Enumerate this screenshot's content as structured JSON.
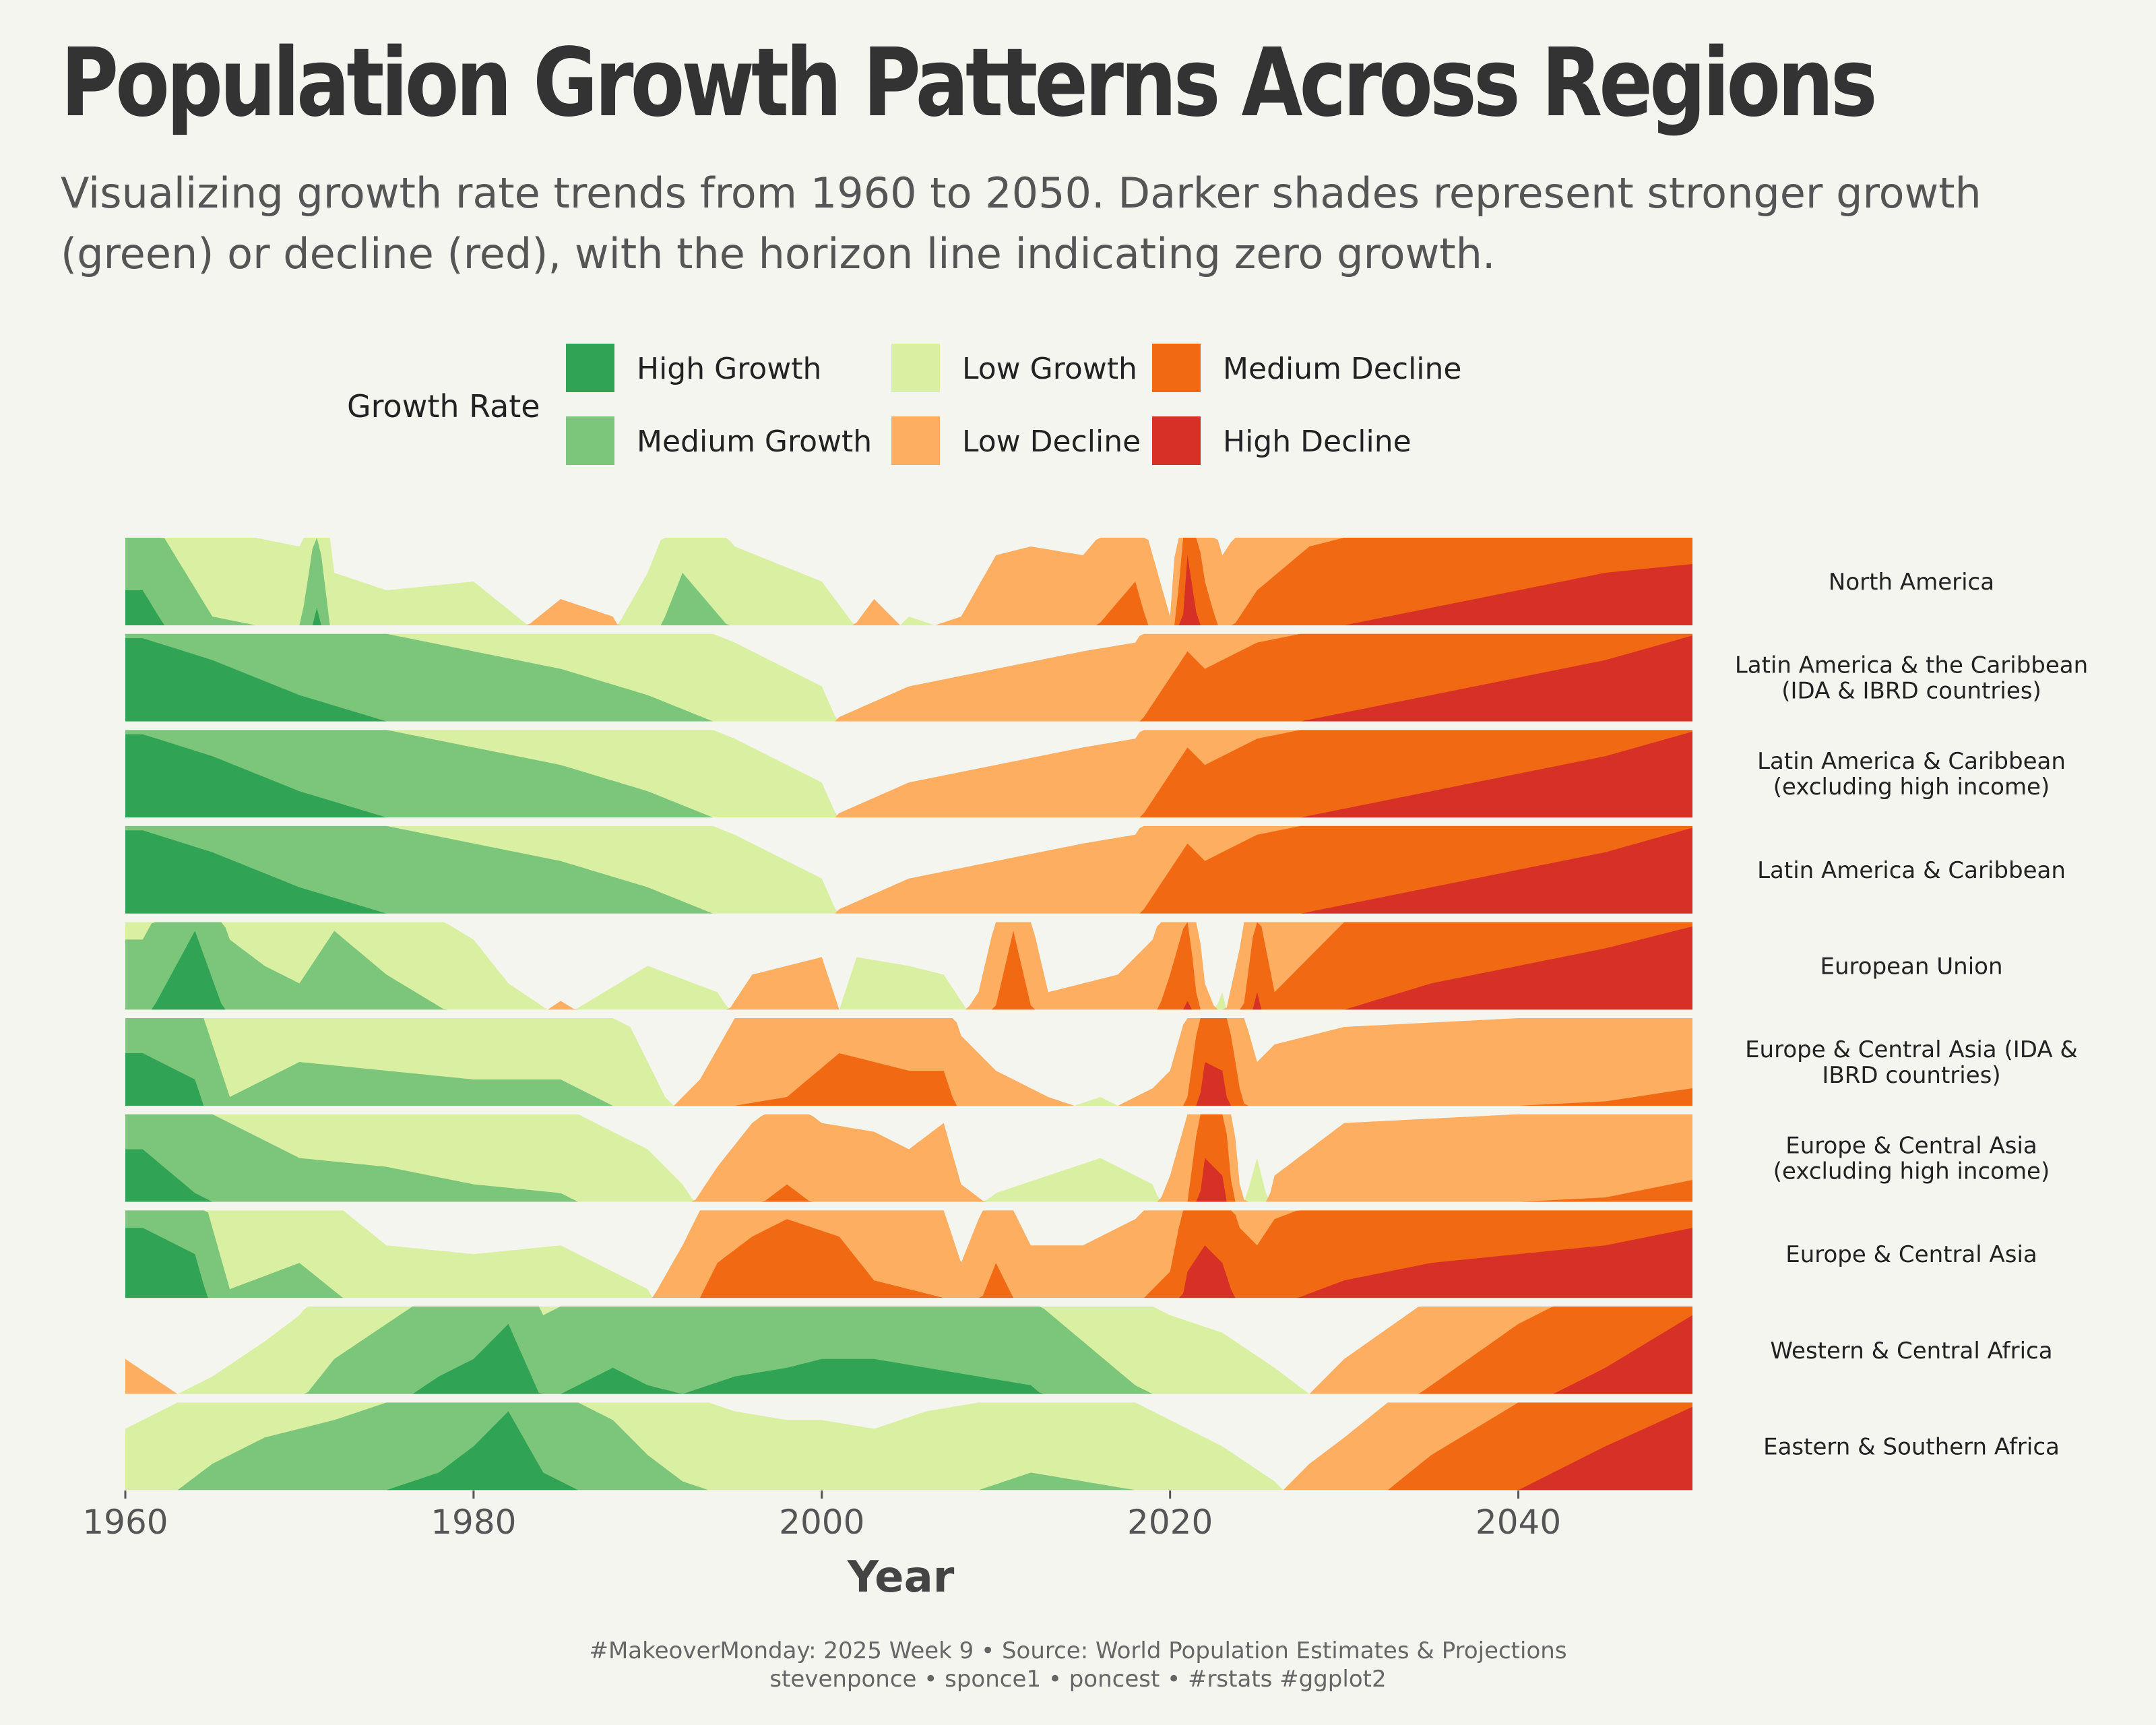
{
  "title": "Population Growth Patterns Across Regions",
  "subtitle": "Visualizing growth rate trends from 1960 to 2050. Darker shades represent stronger growth (green) or decline (red), with the horizon line indicating zero growth.",
  "legend": {
    "title": "Growth Rate",
    "items": [
      {
        "label": "High Growth",
        "color": "#31a354"
      },
      {
        "label": "Medium Growth",
        "color": "#7bc67a"
      },
      {
        "label": "Low Growth",
        "color": "#d9f0a3"
      },
      {
        "label": "Low Decline",
        "color": "#fdae61"
      },
      {
        "label": "Medium Decline",
        "color": "#f16913"
      },
      {
        "label": "High Decline",
        "color": "#d73027"
      }
    ]
  },
  "caption": {
    "line1": "#MakeoverMonday: 2025 Week 9 • Source: World Population Estimates & Projections",
    "line2": "stevenponce • sponce1 • poncest • #rstats #ggplot2"
  },
  "chart_data": {
    "type": "area",
    "subtype": "horizon",
    "xlabel": "Year",
    "xlim": [
      1960,
      2050
    ],
    "xticks": [
      1960,
      1980,
      2000,
      2020,
      2040
    ],
    "band_order": [
      "High Growth",
      "Medium Growth",
      "Low Growth",
      "Low Decline",
      "Medium Decline",
      "High Decline"
    ],
    "band_note": "values are band levels 0-3 read from the horizon layers; positive = growth (green), negative = decline (red)",
    "series": [
      {
        "name": "North America",
        "x": [
          1961,
          1965,
          1970,
          1971,
          1972,
          1975,
          1980,
          1985,
          1988,
          1990,
          1992,
          1995,
          2000,
          2003,
          2005,
          2008,
          2010,
          2012,
          2015,
          2018,
          2020,
          2021,
          2022,
          2023,
          2025,
          2028,
          2030,
          2035,
          2040,
          2045,
          2050
        ],
        "values": [
          2.4,
          1.1,
          0.9,
          2.2,
          0.6,
          0.4,
          0.5,
          -0.3,
          -0.1,
          0.6,
          1.6,
          0.9,
          0.5,
          -0.3,
          0.1,
          -0.1,
          -0.8,
          -0.9,
          -0.8,
          -1.5,
          -0.1,
          -2.8,
          -1.5,
          -0.8,
          -1.4,
          -1.9,
          -2.0,
          -2.2,
          -2.4,
          -2.6,
          -2.7
        ]
      },
      {
        "name": "Latin America & the Caribbean\n(IDA & IBRD countries)",
        "x": [
          1961,
          1965,
          1970,
          1975,
          1980,
          1985,
          1990,
          1995,
          2000,
          2001,
          2005,
          2010,
          2015,
          2018,
          2020,
          2021,
          2022,
          2025,
          2030,
          2035,
          2040,
          2045,
          2050
        ],
        "values": [
          2.95,
          2.7,
          2.3,
          2.0,
          1.8,
          1.6,
          1.3,
          0.9,
          0.4,
          -0.05,
          -0.4,
          -0.6,
          -0.8,
          -0.9,
          -1.5,
          -1.8,
          -1.6,
          -1.9,
          -2.1,
          -2.3,
          -2.5,
          -2.7,
          -2.98
        ]
      },
      {
        "name": "Latin America & Caribbean\n(excluding high income)",
        "x": [
          1961,
          1965,
          1970,
          1975,
          1980,
          1985,
          1990,
          1995,
          2000,
          2001,
          2005,
          2010,
          2015,
          2018,
          2020,
          2021,
          2022,
          2025,
          2030,
          2035,
          2040,
          2045,
          2050
        ],
        "values": [
          2.95,
          2.7,
          2.3,
          2.0,
          1.8,
          1.6,
          1.3,
          0.9,
          0.4,
          -0.05,
          -0.4,
          -0.6,
          -0.8,
          -0.9,
          -1.5,
          -1.8,
          -1.6,
          -1.9,
          -2.1,
          -2.3,
          -2.5,
          -2.7,
          -2.98
        ]
      },
      {
        "name": "Latin America & Caribbean",
        "x": [
          1961,
          1965,
          1970,
          1975,
          1980,
          1985,
          1990,
          1995,
          2000,
          2001,
          2005,
          2010,
          2015,
          2018,
          2020,
          2021,
          2022,
          2025,
          2030,
          2035,
          2040,
          2045,
          2050
        ],
        "values": [
          2.95,
          2.7,
          2.3,
          2.0,
          1.8,
          1.6,
          1.3,
          0.9,
          0.4,
          -0.05,
          -0.4,
          -0.6,
          -0.8,
          -0.9,
          -1.5,
          -1.8,
          -1.6,
          -1.9,
          -2.1,
          -2.3,
          -2.5,
          -2.7,
          -2.98
        ]
      },
      {
        "name": "European Union",
        "x": [
          1961,
          1964,
          1966,
          1968,
          1970,
          1972,
          1975,
          1980,
          1982,
          1985,
          1990,
          1994,
          1996,
          2000,
          2002,
          2005,
          2007,
          2009,
          2011,
          2013,
          2015,
          2017,
          2019,
          2020,
          2021,
          2022,
          2023,
          2024,
          2025,
          2026,
          2030,
          2035,
          2040,
          2045,
          2050
        ],
        "values": [
          1.8,
          2.9,
          1.8,
          1.5,
          1.3,
          1.9,
          1.4,
          0.8,
          0.3,
          -0.1,
          0.5,
          0.2,
          -0.4,
          -0.6,
          0.6,
          0.5,
          0.4,
          -0.2,
          -1.9,
          -0.2,
          -0.3,
          -0.4,
          -0.8,
          -1.4,
          -2.1,
          -0.3,
          0.2,
          -0.7,
          -2.2,
          -1.2,
          -2.0,
          -2.3,
          -2.5,
          -2.7,
          -2.95
        ]
      },
      {
        "name": "Europe & Central Asia (IDA &\nIBRD countries)",
        "x": [
          1961,
          1964,
          1966,
          1970,
          1975,
          1980,
          1985,
          1989,
          1991,
          1993,
          1995,
          1998,
          2001,
          2005,
          2007,
          2008,
          2010,
          2013,
          2016,
          2019,
          2020,
          2021,
          2022,
          2023,
          2024,
          2025,
          2026,
          2030,
          2035,
          2040,
          2045,
          2050
        ],
        "values": [
          2.6,
          2.3,
          1.1,
          1.5,
          1.4,
          1.3,
          1.3,
          0.9,
          0.1,
          -0.3,
          -1.0,
          -1.1,
          -1.6,
          -1.4,
          -1.4,
          -0.8,
          -0.4,
          -0.1,
          0.1,
          -0.2,
          -0.4,
          -1.1,
          -2.5,
          -2.4,
          -1.2,
          -0.5,
          -0.7,
          -0.9,
          -0.95,
          -1.0,
          -1.05,
          -1.2
        ]
      },
      {
        "name": "Europe & Central Asia\n(excluding high income)",
        "x": [
          1961,
          1964,
          1966,
          1970,
          1975,
          1980,
          1985,
          1990,
          1992,
          1994,
          1996,
          1998,
          2000,
          2003,
          2005,
          2007,
          2008,
          2010,
          2013,
          2016,
          2019,
          2020,
          2021,
          2022,
          2023,
          2024,
          2025,
          2026,
          2030,
          2035,
          2040,
          2045,
          2050
        ],
        "values": [
          2.6,
          2.1,
          1.9,
          1.5,
          1.4,
          1.2,
          1.1,
          0.6,
          0.2,
          -0.4,
          -0.9,
          -1.2,
          -0.9,
          -0.8,
          -0.6,
          -0.9,
          -0.2,
          0.1,
          0.3,
          0.5,
          0.2,
          -0.3,
          -1.0,
          -2.5,
          -2.3,
          -0.2,
          0.5,
          -0.3,
          -0.9,
          -0.95,
          -1.0,
          -1.05,
          -1.25
        ]
      },
      {
        "name": "Europe & Central Asia",
        "x": [
          1961,
          1964,
          1966,
          1970,
          1975,
          1980,
          1985,
          1990,
          1992,
          1994,
          1996,
          1998,
          2001,
          2003,
          2005,
          2007,
          2008,
          2010,
          2012,
          2015,
          2018,
          2020,
          2021,
          2022,
          2023,
          2024,
          2025,
          2026,
          2030,
          2035,
          2040,
          2045,
          2050
        ],
        "values": [
          2.8,
          2.5,
          1.1,
          1.4,
          0.6,
          0.5,
          0.6,
          0.1,
          -0.6,
          -1.4,
          -1.7,
          -1.9,
          -1.7,
          -1.2,
          -1.1,
          -1.0,
          -0.4,
          -1.4,
          -0.6,
          -0.6,
          -0.9,
          -1.3,
          -2.3,
          -2.6,
          -2.4,
          -1.8,
          -1.6,
          -1.9,
          -2.2,
          -2.4,
          -2.5,
          -2.6,
          -2.8
        ]
      },
      {
        "name": "Western & Central Africa",
        "x": [
          1960,
          1963,
          1965,
          1968,
          1970,
          1972,
          1975,
          1978,
          1980,
          1982,
          1984,
          1986,
          1988,
          1990,
          1992,
          1995,
          1998,
          2000,
          2003,
          2006,
          2009,
          2012,
          2015,
          2018,
          2020,
          2023,
          2026,
          2028,
          2030,
          2035,
          2040,
          2045,
          2050
        ],
        "values": [
          -0.4,
          0.0,
          0.2,
          0.6,
          0.9,
          1.4,
          1.8,
          2.2,
          2.4,
          2.8,
          1.9,
          2.1,
          2.3,
          2.1,
          2.0,
          2.2,
          2.3,
          2.4,
          2.4,
          2.3,
          2.2,
          2.1,
          1.6,
          1.1,
          0.9,
          0.7,
          0.3,
          0.0,
          -0.4,
          -1.1,
          -1.8,
          -2.3,
          -2.9
        ]
      },
      {
        "name": "Eastern & Southern Africa",
        "x": [
          1960,
          1963,
          1965,
          1968,
          1970,
          1972,
          1975,
          1978,
          1980,
          1982,
          1984,
          1986,
          1988,
          1990,
          1992,
          1995,
          1998,
          2000,
          2003,
          2006,
          2009,
          2012,
          2015,
          2018,
          2020,
          2023,
          2026,
          2028,
          2030,
          2035,
          2040,
          2045,
          2050
        ],
        "values": [
          0.7,
          1.0,
          1.3,
          1.6,
          1.7,
          1.8,
          2.0,
          2.2,
          2.5,
          2.9,
          2.2,
          2.0,
          1.8,
          1.4,
          1.1,
          0.9,
          0.8,
          0.8,
          0.7,
          0.9,
          1.0,
          1.2,
          1.1,
          1.0,
          0.8,
          0.5,
          0.1,
          -0.3,
          -0.6,
          -1.4,
          -2.0,
          -2.5,
          -2.95
        ]
      }
    ]
  }
}
